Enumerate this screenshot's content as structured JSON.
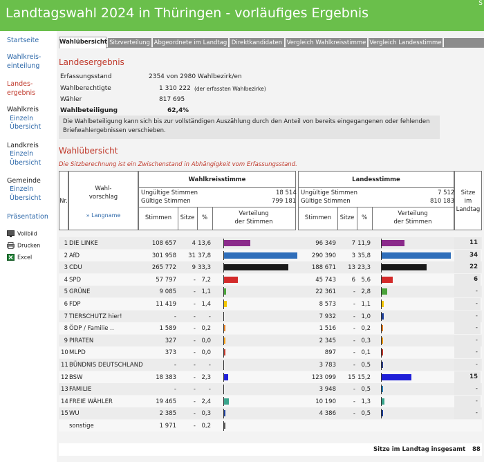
{
  "header": {
    "title": "Landtagswahl 2024 in Thüringen - vorläufiges Ergebnis",
    "corner": "S"
  },
  "sidebar": {
    "startseite": "Startseite",
    "wahlkreis_einteilung_1": "Wahlkreis-",
    "wahlkreis_einteilung_2": "einteilung",
    "landesergebnis_1": "Landes-",
    "landesergebnis_2": "ergebnis",
    "wahlkreis": "Wahlkreis",
    "landkreis": "Landkreis",
    "gemeinde": "Gemeinde",
    "einzeln": "Einzeln",
    "uebersicht": "Übersicht",
    "praesentation": "Präsentation",
    "vollbild": "Vollbild",
    "drucken": "Drucken",
    "excel": "Excel"
  },
  "tabs": [
    "Wahlübersicht",
    "Sitzverteilung",
    "Abgeordnete im Landtag",
    "Direktkandidaten",
    "Vergleich Wahlkreisstimme",
    "Vergleich Landesstimme"
  ],
  "landesergebnis": {
    "heading": "Landesergebnis",
    "erfassungsstand_label": "Erfassungsstand",
    "erfassungsstand_value": "2354 von 2980 Wahlbezirk/en",
    "wahlberechtigte_label": "Wahlberechtigte",
    "wahlberechtigte_value": "1 310 222",
    "wahlberechtigte_note": "(der erfassten Wahlbezirke)",
    "waehler_label": "Wähler",
    "waehler_value": "817 695",
    "wahlbeteiligung_label": "Wahlbeteiligung",
    "wahlbeteiligung_value": "62,4",
    "wahlbeteiligung_unit": "%",
    "note_1": "Die Wahlbeteiligung kann sich bis zur vollständigen Auszählung durch den Anteil von bereits eingegangenen oder fehlenden",
    "note_2": "Briefwahlergebnissen verschieben."
  },
  "wahluebersicht": {
    "heading": "Wahlübersicht",
    "warning": "Die Sitzberechnung ist ein Zwischenstand in Abhängigkeit vom Erfassungsstand."
  },
  "table": {
    "nr": "Nr.",
    "wahlvorschlag_1": "Wahl-",
    "wahlvorschlag_2": "vorschlag",
    "langname": "» Langname",
    "wk_title": "Wahlkreisstimme",
    "ls_title": "Landesstimme",
    "ungueltige": "Ungültige Stimmen",
    "gueltige": "Gültige Stimmen",
    "wk_ungueltig": "18 514",
    "wk_gueltig": "799 181",
    "ls_ungueltig": "7 512",
    "ls_gueltig": "810 183",
    "stimmen": "Stimmen",
    "sitze": "Sitze",
    "pct": "%",
    "verteilung_1": "Verteilung",
    "verteilung_2": "der Stimmen",
    "sitze_landtag_1": "Sitze",
    "sitze_landtag_2": "im",
    "sitze_landtag_3": "Landtag",
    "total_label": "Sitze im Landtag insgesamt",
    "total_value": "88"
  },
  "rows": [
    {
      "nr": "1",
      "name": "DIE LINKE",
      "wk_stimmen": "108 657",
      "wk_sitze": "4",
      "wk_pct": "13,6",
      "wk_v": 13.6,
      "ls_stimmen": "96 349",
      "ls_sitze": "7",
      "ls_pct": "11,9",
      "ls_v": 11.9,
      "landtag": "11",
      "color": "#8b2a8b"
    },
    {
      "nr": "2",
      "name": "AfD",
      "wk_stimmen": "301 958",
      "wk_sitze": "31",
      "wk_pct": "37,8",
      "wk_v": 37.8,
      "ls_stimmen": "290 390",
      "ls_sitze": "3",
      "ls_pct": "35,8",
      "ls_v": 35.8,
      "landtag": "34",
      "color": "#2f6eba"
    },
    {
      "nr": "3",
      "name": "CDU",
      "wk_stimmen": "265 772",
      "wk_sitze": "9",
      "wk_pct": "33,3",
      "wk_v": 33.3,
      "ls_stimmen": "188 671",
      "ls_sitze": "13",
      "ls_pct": "23,3",
      "ls_v": 23.3,
      "landtag": "22",
      "color": "#1a1a1a"
    },
    {
      "nr": "4",
      "name": "SPD",
      "wk_stimmen": "57 797",
      "wk_sitze": "-",
      "wk_pct": "7,2",
      "wk_v": 7.2,
      "ls_stimmen": "45 743",
      "ls_sitze": "6",
      "ls_pct": "5,6",
      "ls_v": 5.6,
      "landtag": "6",
      "color": "#d32a2a"
    },
    {
      "nr": "5",
      "name": "GRÜNE",
      "wk_stimmen": "9 085",
      "wk_sitze": "-",
      "wk_pct": "1,1",
      "wk_v": 1.1,
      "ls_stimmen": "22 361",
      "ls_sitze": "-",
      "ls_pct": "2,8",
      "ls_v": 2.8,
      "landtag": "-",
      "color": "#4aa33a"
    },
    {
      "nr": "6",
      "name": "FDP",
      "wk_stimmen": "11 419",
      "wk_sitze": "-",
      "wk_pct": "1,4",
      "wk_v": 1.4,
      "ls_stimmen": "8 573",
      "ls_sitze": "-",
      "ls_pct": "1,1",
      "ls_v": 1.1,
      "landtag": "-",
      "color": "#f2c500"
    },
    {
      "nr": "7",
      "name": "TIERSCHUTZ hier!",
      "wk_stimmen": "-",
      "wk_sitze": "-",
      "wk_pct": "-",
      "wk_v": 0,
      "ls_stimmen": "7 932",
      "ls_sitze": "-",
      "ls_pct": "1,0",
      "ls_v": 1.0,
      "landtag": "-",
      "color": "#1d3f9a"
    },
    {
      "nr": "8",
      "name": "ÖDP / Familie ..",
      "wk_stimmen": "1 589",
      "wk_sitze": "-",
      "wk_pct": "0,2",
      "wk_v": 0.2,
      "ls_stimmen": "1 516",
      "ls_sitze": "-",
      "ls_pct": "0,2",
      "ls_v": 0.2,
      "landtag": "-",
      "color": "#e67e22"
    },
    {
      "nr": "9",
      "name": "PIRATEN",
      "wk_stimmen": "327",
      "wk_sitze": "-",
      "wk_pct": "0,0",
      "wk_v": 0.04,
      "ls_stimmen": "2 345",
      "ls_sitze": "-",
      "ls_pct": "0,3",
      "ls_v": 0.3,
      "landtag": "-",
      "color": "#f39c12"
    },
    {
      "nr": "10",
      "name": "MLPD",
      "wk_stimmen": "373",
      "wk_sitze": "-",
      "wk_pct": "0,0",
      "wk_v": 0.05,
      "ls_stimmen": "897",
      "ls_sitze": "-",
      "ls_pct": "0,1",
      "ls_v": 0.1,
      "landtag": "-",
      "color": "#c0392b"
    },
    {
      "nr": "11",
      "name": "BÜNDNIS DEUTSCHLAND",
      "wk_stimmen": "-",
      "wk_sitze": "-",
      "wk_pct": "-",
      "wk_v": 0,
      "ls_stimmen": "3 783",
      "ls_sitze": "-",
      "ls_pct": "0,5",
      "ls_v": 0.5,
      "landtag": "-",
      "color": "#2c3e8c"
    },
    {
      "nr": "12",
      "name": "BSW",
      "wk_stimmen": "18 383",
      "wk_sitze": "-",
      "wk_pct": "2,3",
      "wk_v": 2.3,
      "ls_stimmen": "123 099",
      "ls_sitze": "15",
      "ls_pct": "15,2",
      "ls_v": 15.2,
      "landtag": "15",
      "color": "#1f1fd8"
    },
    {
      "nr": "13",
      "name": "FAMILIE",
      "wk_stimmen": "-",
      "wk_sitze": "-",
      "wk_pct": "-",
      "wk_v": 0,
      "ls_stimmen": "3 948",
      "ls_sitze": "-",
      "ls_pct": "0,5",
      "ls_v": 0.5,
      "landtag": "-",
      "color": "#2980b9"
    },
    {
      "nr": "14",
      "name": "FREIE WÄHLER",
      "wk_stimmen": "19 465",
      "wk_sitze": "-",
      "wk_pct": "2,4",
      "wk_v": 2.4,
      "ls_stimmen": "10 190",
      "ls_sitze": "-",
      "ls_pct": "1,3",
      "ls_v": 1.3,
      "landtag": "-",
      "color": "#3aa58c"
    },
    {
      "nr": "15",
      "name": "WU",
      "wk_stimmen": "2 385",
      "wk_sitze": "-",
      "wk_pct": "0,3",
      "wk_v": 0.3,
      "ls_stimmen": "4 386",
      "ls_sitze": "-",
      "ls_pct": "0,5",
      "ls_v": 0.5,
      "landtag": "-",
      "color": "#1d3f9a"
    },
    {
      "nr": "",
      "name": "sonstige",
      "wk_stimmen": "1 971",
      "wk_sitze": "-",
      "wk_pct": "0,2",
      "wk_v": 0.2,
      "ls_stimmen": "",
      "ls_sitze": "",
      "ls_pct": "",
      "ls_v": 0,
      "landtag": "",
      "color": "#555555"
    }
  ]
}
